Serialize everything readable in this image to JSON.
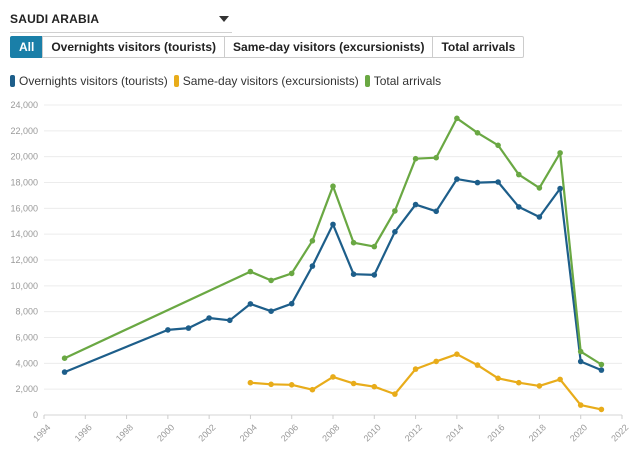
{
  "country_selector": {
    "value": "SAUDI ARABIA"
  },
  "tabs": [
    {
      "label": "All",
      "active": true
    },
    {
      "label": "Overnights visitors (tourists)",
      "active": false
    },
    {
      "label": "Same-day visitors (excursionists)",
      "active": false
    },
    {
      "label": "Total arrivals",
      "active": false
    }
  ],
  "colors": {
    "overnights": "#1d5e8a",
    "same_day": "#e8ac1a",
    "total": "#6aa843",
    "accent": "#1a7fa8"
  },
  "chart_data": {
    "type": "line",
    "xlim": [
      1994,
      2022
    ],
    "ylim": [
      0,
      24000
    ],
    "x_ticks": [
      "1994",
      "1996",
      "1998",
      "2000",
      "2002",
      "2004",
      "2006",
      "2008",
      "2010",
      "2012",
      "2014",
      "2016",
      "2018",
      "2020",
      "2022"
    ],
    "y_ticks": [
      "0",
      "2,000",
      "4,000",
      "6,000",
      "8,000",
      "10,000",
      "12,000",
      "14,000",
      "16,000",
      "18,000",
      "20,000",
      "22,000",
      "24,000"
    ],
    "series": [
      {
        "name": "Overnights visitors (tourists)",
        "key": "overnights",
        "points": [
          [
            1995,
            3325
          ],
          [
            2000,
            6585
          ],
          [
            2001,
            6727
          ],
          [
            2002,
            7511
          ],
          [
            2003,
            7332
          ],
          [
            2004,
            8599
          ],
          [
            2005,
            8037
          ],
          [
            2006,
            8620
          ],
          [
            2007,
            11531
          ],
          [
            2008,
            14757
          ],
          [
            2009,
            10897
          ],
          [
            2010,
            10850
          ],
          [
            2011,
            14183
          ],
          [
            2012,
            16290
          ],
          [
            2013,
            15770
          ],
          [
            2014,
            18260
          ],
          [
            2015,
            17990
          ],
          [
            2016,
            18040
          ],
          [
            2017,
            16110
          ],
          [
            2018,
            15330
          ],
          [
            2019,
            17530
          ],
          [
            2020,
            4140
          ],
          [
            2021,
            3480
          ]
        ]
      },
      {
        "name": "Same-day visitors (excursionists)",
        "key": "same_day",
        "points": [
          [
            2004,
            2500
          ],
          [
            2005,
            2380
          ],
          [
            2006,
            2340
          ],
          [
            2007,
            1960
          ],
          [
            2008,
            2950
          ],
          [
            2009,
            2440
          ],
          [
            2010,
            2190
          ],
          [
            2011,
            1620
          ],
          [
            2012,
            3550
          ],
          [
            2013,
            4150
          ],
          [
            2014,
            4710
          ],
          [
            2015,
            3860
          ],
          [
            2016,
            2840
          ],
          [
            2017,
            2500
          ],
          [
            2018,
            2250
          ],
          [
            2019,
            2760
          ],
          [
            2020,
            770
          ],
          [
            2021,
            430
          ]
        ]
      },
      {
        "name": "Total arrivals",
        "key": "total",
        "points": [
          [
            1995,
            4400
          ],
          [
            2004,
            11100
          ],
          [
            2005,
            10420
          ],
          [
            2006,
            10960
          ],
          [
            2007,
            13490
          ],
          [
            2008,
            17710
          ],
          [
            2009,
            13340
          ],
          [
            2010,
            13040
          ],
          [
            2011,
            15800
          ],
          [
            2012,
            19840
          ],
          [
            2013,
            19920
          ],
          [
            2014,
            22970
          ],
          [
            2015,
            21850
          ],
          [
            2016,
            20880
          ],
          [
            2017,
            18610
          ],
          [
            2018,
            17580
          ],
          [
            2019,
            20290
          ],
          [
            2020,
            4910
          ],
          [
            2021,
            3910
          ]
        ]
      }
    ]
  }
}
